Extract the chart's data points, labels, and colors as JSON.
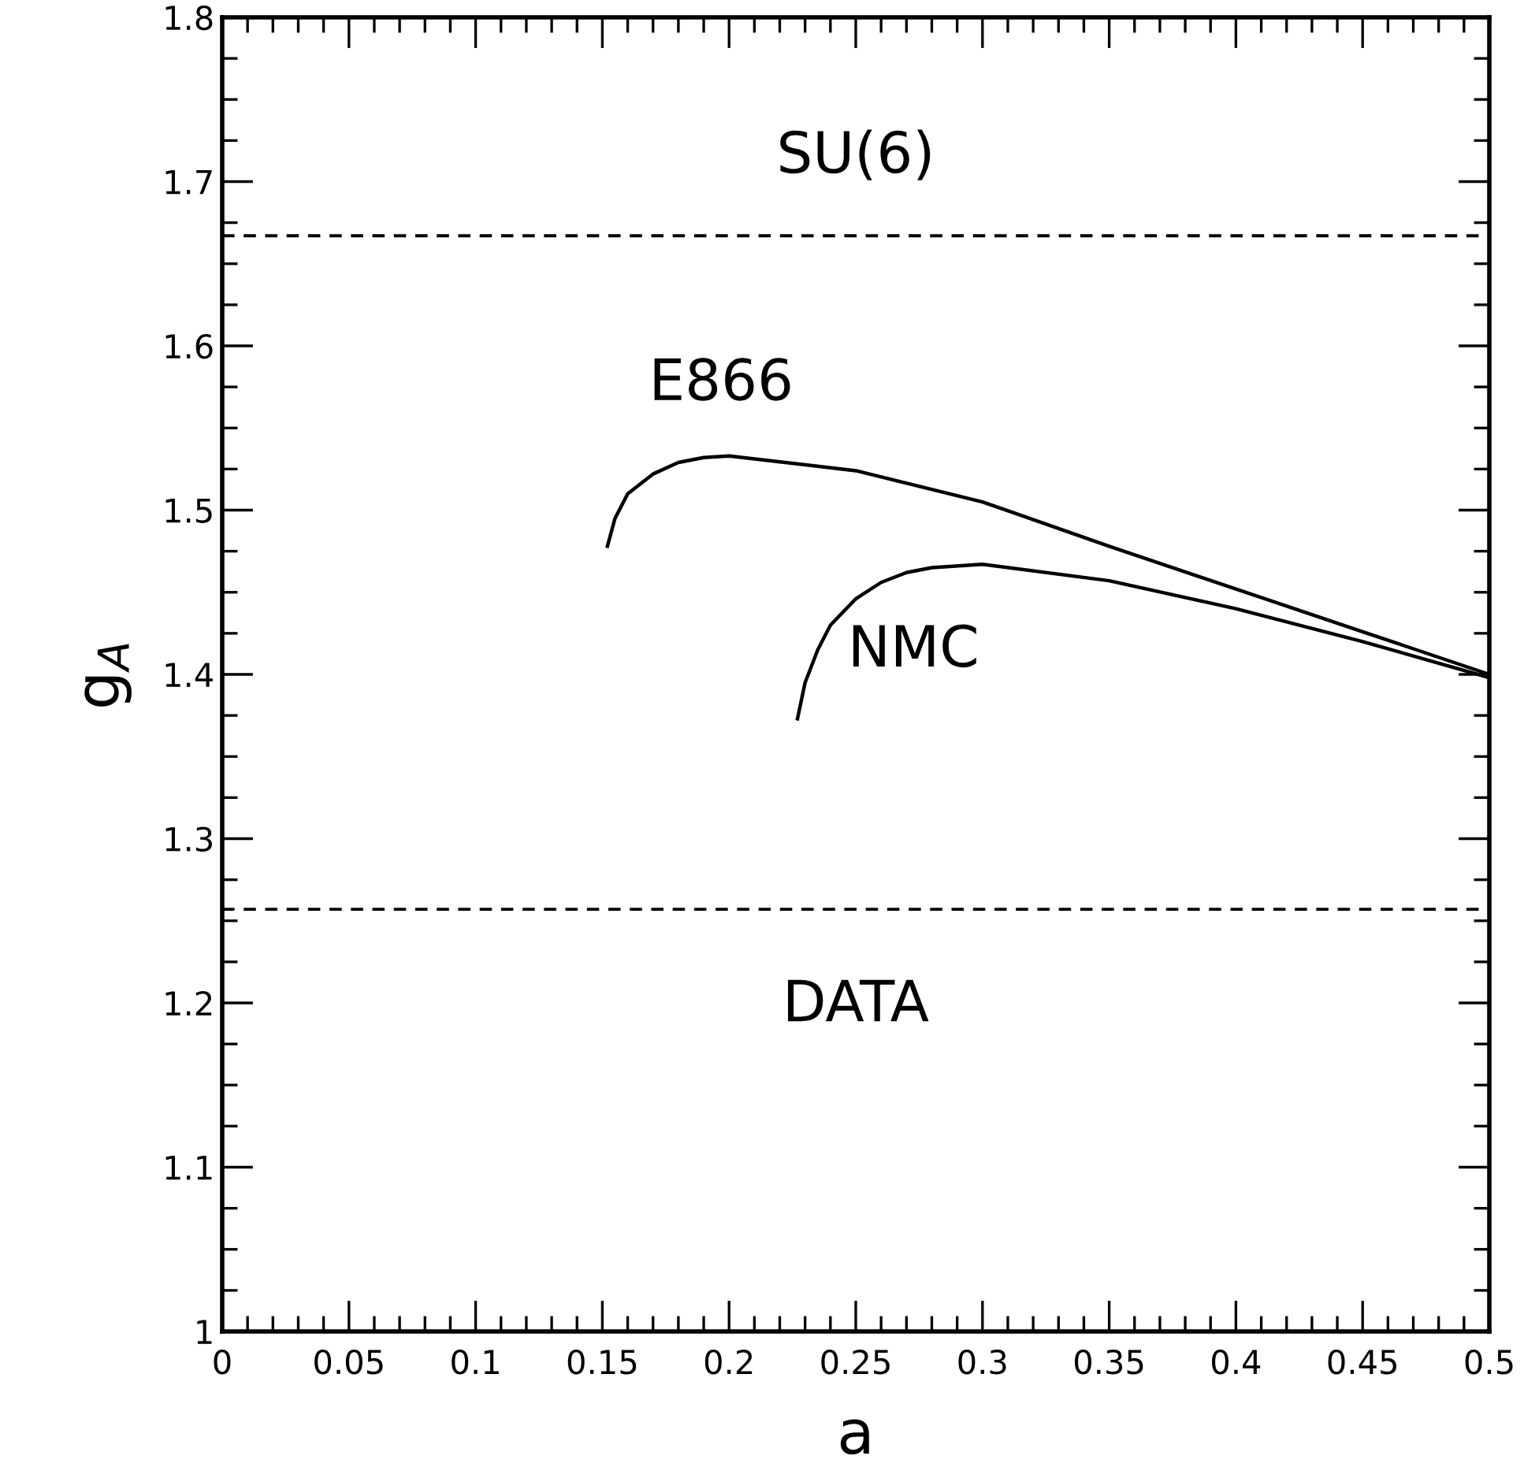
{
  "chart_data": {
    "type": "line",
    "xlabel": "a",
    "ylabel": "g$_{A}$",
    "xlim": [
      0,
      0.5
    ],
    "ylim": [
      1,
      1.8
    ],
    "xticks": [
      0,
      0.05,
      0.1,
      0.15,
      0.2,
      0.25,
      0.3,
      0.35,
      0.4,
      0.45,
      0.5
    ],
    "yticks": [
      1,
      1.1,
      1.2,
      1.3,
      1.4,
      1.5,
      1.6,
      1.7,
      1.8
    ],
    "grid": false,
    "marker": "none",
    "line_style": "solid",
    "series": [
      {
        "name": "E866",
        "color": "#000000",
        "x": [
          0.152,
          0.155,
          0.16,
          0.17,
          0.18,
          0.19,
          0.2,
          0.25,
          0.3,
          0.35,
          0.4,
          0.45,
          0.5
        ],
        "values": [
          1.478,
          1.495,
          1.51,
          1.522,
          1.529,
          1.532,
          1.533,
          1.524,
          1.505,
          1.478,
          1.452,
          1.426,
          1.4
        ]
      },
      {
        "name": "NMC",
        "color": "#000000",
        "x": [
          0.227,
          0.23,
          0.235,
          0.24,
          0.25,
          0.26,
          0.27,
          0.28,
          0.3,
          0.35,
          0.4,
          0.45,
          0.5
        ],
        "values": [
          1.373,
          1.395,
          1.415,
          1.43,
          1.446,
          1.456,
          1.462,
          1.465,
          1.467,
          1.457,
          1.44,
          1.42,
          1.398
        ]
      }
    ],
    "ref_lines": [
      {
        "axis": "y",
        "value": 1.667,
        "label": "SU(6)",
        "color": "#000000",
        "line_style": "dashed"
      },
      {
        "axis": "y",
        "value": 1.257,
        "label": "DATA",
        "color": "#000000",
        "line_style": "dashed"
      }
    ]
  }
}
